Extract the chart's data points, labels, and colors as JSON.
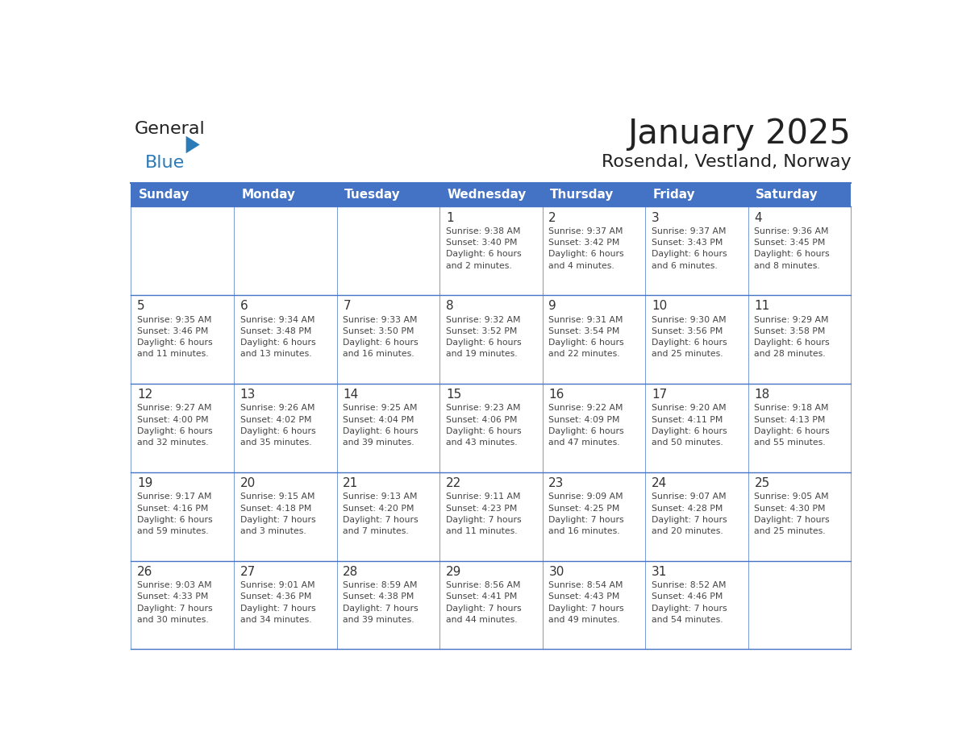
{
  "title": "January 2025",
  "subtitle": "Rosendal, Vestland, Norway",
  "days_of_week": [
    "Sunday",
    "Monday",
    "Tuesday",
    "Wednesday",
    "Thursday",
    "Friday",
    "Saturday"
  ],
  "header_bg": "#4472C4",
  "header_text_color": "#FFFFFF",
  "cell_bg_light": "#FFFFFF",
  "line_color": "#4472C4",
  "text_color_day": "#333333",
  "text_color_info": "#444444",
  "title_color": "#222222",
  "subtitle_color": "#222222",
  "logo_general_color": "#222222",
  "logo_blue_color": "#2B7BB9",
  "logo_triangle_color": "#2B7BB9",
  "calendar": [
    [
      null,
      null,
      null,
      {
        "day": 1,
        "sunrise": "9:38 AM",
        "sunset": "3:40 PM",
        "daylight": "6 hours and 2 minutes"
      },
      {
        "day": 2,
        "sunrise": "9:37 AM",
        "sunset": "3:42 PM",
        "daylight": "6 hours and 4 minutes"
      },
      {
        "day": 3,
        "sunrise": "9:37 AM",
        "sunset": "3:43 PM",
        "daylight": "6 hours and 6 minutes"
      },
      {
        "day": 4,
        "sunrise": "9:36 AM",
        "sunset": "3:45 PM",
        "daylight": "6 hours and 8 minutes"
      }
    ],
    [
      {
        "day": 5,
        "sunrise": "9:35 AM",
        "sunset": "3:46 PM",
        "daylight": "6 hours and 11 minutes"
      },
      {
        "day": 6,
        "sunrise": "9:34 AM",
        "sunset": "3:48 PM",
        "daylight": "6 hours and 13 minutes"
      },
      {
        "day": 7,
        "sunrise": "9:33 AM",
        "sunset": "3:50 PM",
        "daylight": "6 hours and 16 minutes"
      },
      {
        "day": 8,
        "sunrise": "9:32 AM",
        "sunset": "3:52 PM",
        "daylight": "6 hours and 19 minutes"
      },
      {
        "day": 9,
        "sunrise": "9:31 AM",
        "sunset": "3:54 PM",
        "daylight": "6 hours and 22 minutes"
      },
      {
        "day": 10,
        "sunrise": "9:30 AM",
        "sunset": "3:56 PM",
        "daylight": "6 hours and 25 minutes"
      },
      {
        "day": 11,
        "sunrise": "9:29 AM",
        "sunset": "3:58 PM",
        "daylight": "6 hours and 28 minutes"
      }
    ],
    [
      {
        "day": 12,
        "sunrise": "9:27 AM",
        "sunset": "4:00 PM",
        "daylight": "6 hours and 32 minutes"
      },
      {
        "day": 13,
        "sunrise": "9:26 AM",
        "sunset": "4:02 PM",
        "daylight": "6 hours and 35 minutes"
      },
      {
        "day": 14,
        "sunrise": "9:25 AM",
        "sunset": "4:04 PM",
        "daylight": "6 hours and 39 minutes"
      },
      {
        "day": 15,
        "sunrise": "9:23 AM",
        "sunset": "4:06 PM",
        "daylight": "6 hours and 43 minutes"
      },
      {
        "day": 16,
        "sunrise": "9:22 AM",
        "sunset": "4:09 PM",
        "daylight": "6 hours and 47 minutes"
      },
      {
        "day": 17,
        "sunrise": "9:20 AM",
        "sunset": "4:11 PM",
        "daylight": "6 hours and 50 minutes"
      },
      {
        "day": 18,
        "sunrise": "9:18 AM",
        "sunset": "4:13 PM",
        "daylight": "6 hours and 55 minutes"
      }
    ],
    [
      {
        "day": 19,
        "sunrise": "9:17 AM",
        "sunset": "4:16 PM",
        "daylight": "6 hours and 59 minutes"
      },
      {
        "day": 20,
        "sunrise": "9:15 AM",
        "sunset": "4:18 PM",
        "daylight": "7 hours and 3 minutes"
      },
      {
        "day": 21,
        "sunrise": "9:13 AM",
        "sunset": "4:20 PM",
        "daylight": "7 hours and 7 minutes"
      },
      {
        "day": 22,
        "sunrise": "9:11 AM",
        "sunset": "4:23 PM",
        "daylight": "7 hours and 11 minutes"
      },
      {
        "day": 23,
        "sunrise": "9:09 AM",
        "sunset": "4:25 PM",
        "daylight": "7 hours and 16 minutes"
      },
      {
        "day": 24,
        "sunrise": "9:07 AM",
        "sunset": "4:28 PM",
        "daylight": "7 hours and 20 minutes"
      },
      {
        "day": 25,
        "sunrise": "9:05 AM",
        "sunset": "4:30 PM",
        "daylight": "7 hours and 25 minutes"
      }
    ],
    [
      {
        "day": 26,
        "sunrise": "9:03 AM",
        "sunset": "4:33 PM",
        "daylight": "7 hours and 30 minutes"
      },
      {
        "day": 27,
        "sunrise": "9:01 AM",
        "sunset": "4:36 PM",
        "daylight": "7 hours and 34 minutes"
      },
      {
        "day": 28,
        "sunrise": "8:59 AM",
        "sunset": "4:38 PM",
        "daylight": "7 hours and 39 minutes"
      },
      {
        "day": 29,
        "sunrise": "8:56 AM",
        "sunset": "4:41 PM",
        "daylight": "7 hours and 44 minutes"
      },
      {
        "day": 30,
        "sunrise": "8:54 AM",
        "sunset": "4:43 PM",
        "daylight": "7 hours and 49 minutes"
      },
      {
        "day": 31,
        "sunrise": "8:52 AM",
        "sunset": "4:46 PM",
        "daylight": "7 hours and 54 minutes"
      },
      null
    ]
  ]
}
